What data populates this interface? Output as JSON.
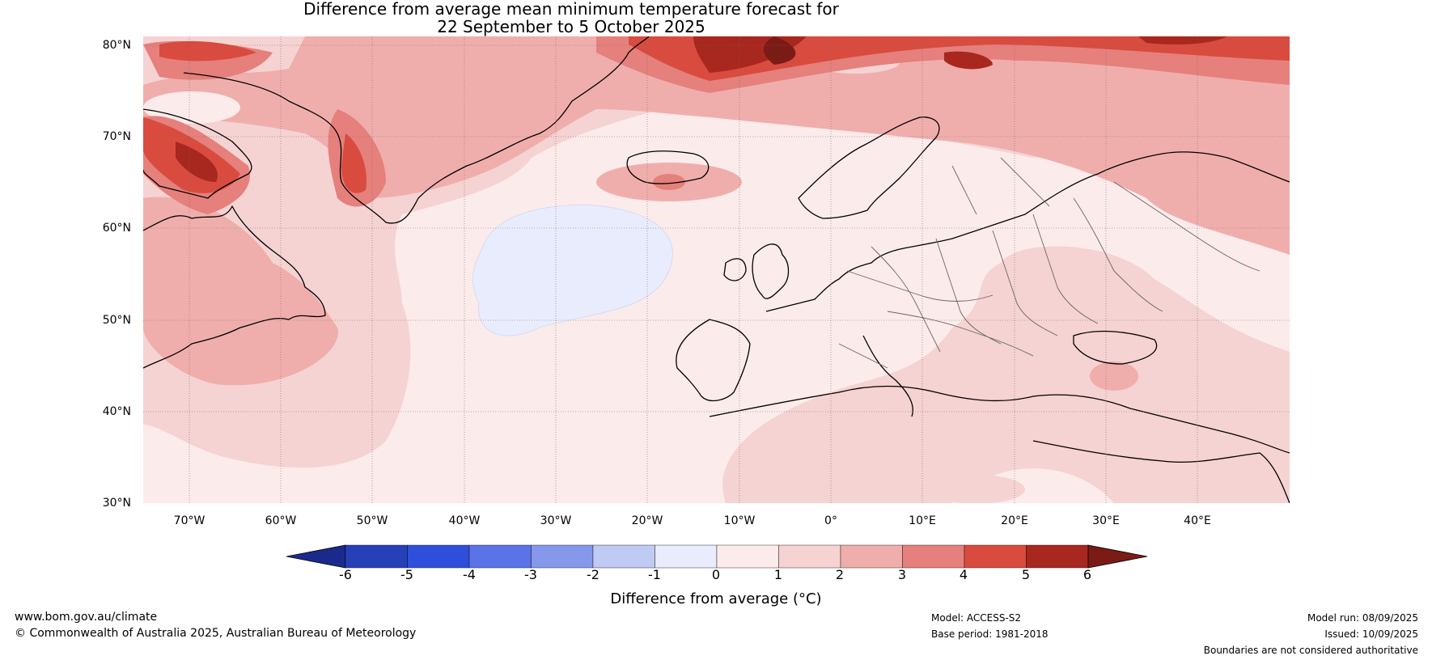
{
  "title": {
    "line1": "Difference from average mean minimum temperature forecast for",
    "line2": "22 September to 5 October 2025"
  },
  "map": {
    "lat_labels": [
      "80°N",
      "70°N",
      "60°N",
      "50°N",
      "40°N",
      "30°N"
    ],
    "lon_labels": [
      "70°W",
      "60°W",
      "50°W",
      "40°W",
      "30°W",
      "20°W",
      "10°W",
      "0°",
      "10°E",
      "20°E",
      "30°E",
      "40°E"
    ],
    "lat_range": [
      30,
      81
    ],
    "lon_range": [
      -75,
      50
    ]
  },
  "colorbar": {
    "ticks": [
      "-6",
      "-5",
      "-4",
      "-3",
      "-2",
      "-1",
      "0",
      "1",
      "2",
      "3",
      "4",
      "5",
      "6"
    ],
    "colors": [
      "#1a2a8c",
      "#2640b8",
      "#2f4fdb",
      "#5a73e6",
      "#8598ec",
      "#c0cbf4",
      "#e8ecfc",
      "#fcebeb",
      "#f5d3d2",
      "#efaeac",
      "#e5807c",
      "#d94b3f",
      "#a8271f",
      "#7a1b16"
    ],
    "label": "Difference from average (°C)"
  },
  "footer": {
    "website": "www.bom.gov.au/climate",
    "copyright": "© Commonwealth of Australia 2025, Australian Bureau of Meteorology",
    "model": "Model: ACCESS-S2",
    "base_period": "Base period: 1981-2018",
    "model_run": "Model run: 08/09/2025",
    "issued": "Issued: 10/09/2025",
    "boundaries_note": "Boundaries are not considered authoritative"
  }
}
